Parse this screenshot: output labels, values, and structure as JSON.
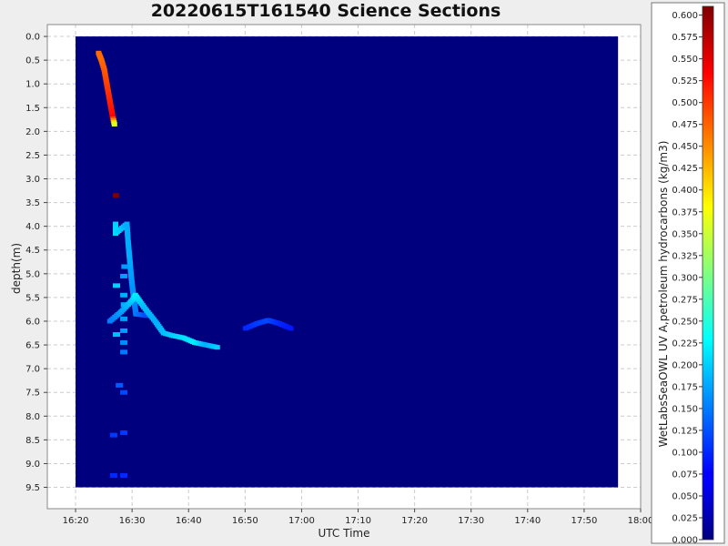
{
  "chart_data": {
    "type": "heatmap",
    "title": "20220615T161540 Science Sections",
    "xlabel": "UTC Time",
    "ylabel": "depth(m)",
    "x_ticks": [
      "16:20",
      "16:30",
      "16:40",
      "16:50",
      "17:00",
      "17:10",
      "17:20",
      "17:30",
      "17:40",
      "17:50",
      "18:00"
    ],
    "x_range_minutes": [
      975,
      1080
    ],
    "y_ticks": [
      "0.0",
      "0.5",
      "1.0",
      "1.5",
      "2.0",
      "2.5",
      "3.0",
      "3.5",
      "4.0",
      "4.5",
      "5.0",
      "5.5",
      "6.0",
      "6.5",
      "7.0",
      "7.5",
      "8.0",
      "8.5",
      "9.0",
      "9.5"
    ],
    "y_range": [
      -0.25,
      9.95
    ],
    "grid": true,
    "background_value": 0.0,
    "data_extent": {
      "x_minutes": [
        980,
        1076
      ],
      "depth": [
        0.0,
        9.5
      ]
    },
    "colorbar": {
      "label": "WetLabsSeaOWL UV A,petroleum hydrocarbons (kg/m3)",
      "range": [
        0.0,
        0.61
      ],
      "colormap": "jet",
      "ticks": [
        "0.000",
        "0.025",
        "0.050",
        "0.075",
        "0.100",
        "0.125",
        "0.150",
        "0.175",
        "0.200",
        "0.225",
        "0.250",
        "0.275",
        "0.300",
        "0.325",
        "0.350",
        "0.375",
        "0.400",
        "0.425",
        "0.450",
        "0.475",
        "0.500",
        "0.525",
        "0.550",
        "0.575",
        "0.600"
      ]
    },
    "series": [
      {
        "points": [
          [
            984.0,
            0.35,
            0.47
          ],
          [
            984.5,
            0.5,
            0.47
          ],
          [
            985.0,
            0.7,
            0.48
          ],
          [
            985.3,
            0.9,
            0.49
          ],
          [
            985.6,
            1.1,
            0.5
          ],
          [
            985.9,
            1.3,
            0.51
          ],
          [
            986.2,
            1.5,
            0.52
          ],
          [
            986.5,
            1.7,
            0.53
          ],
          [
            986.8,
            1.85,
            0.36
          ]
        ]
      },
      {
        "points": [
          [
            987.0,
            3.35,
            0.61
          ]
        ]
      },
      {
        "points": [
          [
            987.0,
            3.95,
            0.2
          ],
          [
            987.0,
            4.15,
            0.21
          ],
          [
            989.0,
            3.95,
            0.18
          ],
          [
            989.2,
            4.3,
            0.18
          ],
          [
            989.5,
            4.7,
            0.18
          ],
          [
            989.8,
            5.1,
            0.17
          ],
          [
            990.2,
            5.5,
            0.16
          ],
          [
            990.6,
            5.85,
            0.15
          ],
          [
            992.5,
            5.88,
            0.12
          ]
        ]
      },
      {
        "points": [
          [
            988.5,
            4.85,
            0.17
          ],
          [
            988.3,
            5.05,
            0.17
          ],
          [
            987.0,
            5.25,
            0.2
          ],
          [
            988.3,
            5.45,
            0.18
          ],
          [
            988.4,
            5.65,
            0.18
          ],
          [
            988.3,
            5.95,
            0.17
          ],
          [
            987.0,
            6.28,
            0.19
          ],
          [
            988.3,
            6.2,
            0.17
          ],
          [
            988.3,
            6.45,
            0.16
          ],
          [
            988.3,
            6.65,
            0.15
          ],
          [
            987.5,
            7.35,
            0.13
          ],
          [
            988.3,
            7.5,
            0.12
          ],
          [
            986.5,
            8.4,
            0.11
          ],
          [
            988.3,
            8.35,
            0.11
          ],
          [
            986.5,
            9.25,
            0.1
          ],
          [
            988.3,
            9.25,
            0.1
          ]
        ]
      },
      {
        "points": [
          [
            986.0,
            6.0,
            0.15
          ],
          [
            988.0,
            5.8,
            0.17
          ],
          [
            990.0,
            5.55,
            0.2
          ],
          [
            990.5,
            5.45,
            0.22
          ],
          [
            992.0,
            5.7,
            0.19
          ],
          [
            994.0,
            6.0,
            0.18
          ],
          [
            995.5,
            6.25,
            0.19
          ],
          [
            997.0,
            6.3,
            0.2
          ],
          [
            999.0,
            6.35,
            0.21
          ],
          [
            1001.0,
            6.45,
            0.22
          ],
          [
            1003.0,
            6.5,
            0.18
          ],
          [
            1005.0,
            6.55,
            0.2
          ]
        ]
      },
      {
        "points": [
          [
            1010.0,
            6.15,
            0.1
          ],
          [
            1012.0,
            6.05,
            0.11
          ],
          [
            1014.0,
            5.98,
            0.12
          ],
          [
            1016.0,
            6.05,
            0.1
          ],
          [
            1018.0,
            6.15,
            0.09
          ]
        ]
      }
    ]
  }
}
